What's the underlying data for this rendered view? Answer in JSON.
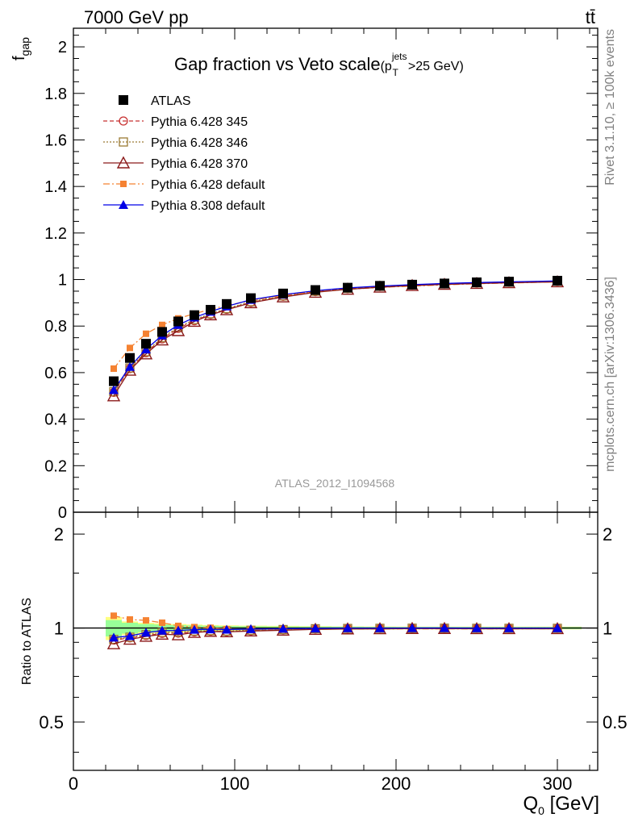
{
  "header": {
    "energy_label": "7000 GeV pp",
    "process_label": "tt̄",
    "rivet_label": "Rivet 3.1.10, ≥ 100k events",
    "mcplots_label": "mcplots.cern.ch [arXiv:1306.3436]",
    "analysis_label": "ATLAS_2012_I1094568"
  },
  "chart_data": [
    {
      "type": "line",
      "title_main": "Gap fraction vs Veto scale",
      "title_sub": "(p",
      "title_sub_sup": "jets",
      "title_sub_sub": "T",
      "title_sub_tail": ">25 GeV)",
      "ylabel": "f",
      "ylabel_sub": "gap",
      "xlim": [
        0,
        325
      ],
      "ylim": [
        0,
        2.08
      ],
      "yticks": [
        0,
        0.2,
        0.4,
        0.6,
        0.8,
        1,
        1.2,
        1.4,
        1.6,
        1.8,
        2
      ],
      "ytick_labels": [
        "0",
        "0.2",
        "0.4",
        "0.6",
        "0.8",
        "1",
        "1.2",
        "1.4",
        "1.6",
        "1.8",
        "2"
      ],
      "x": [
        25,
        35,
        45,
        55,
        65,
        75,
        85,
        95,
        110,
        130,
        150,
        170,
        190,
        210,
        230,
        250,
        270,
        300
      ],
      "series": [
        {
          "name": "ATLAS",
          "color": "#000000",
          "marker": "square-filled",
          "dash": "none",
          "values": [
            0.563,
            0.663,
            0.724,
            0.775,
            0.82,
            0.847,
            0.87,
            0.895,
            0.92,
            0.94,
            0.955,
            0.965,
            0.973,
            0.978,
            0.983,
            0.988,
            0.991,
            0.995
          ]
        },
        {
          "name": "Pythia 6.428 345",
          "color": "#c83232",
          "marker": "circle-open",
          "dash": "5,3",
          "values": [
            0.515,
            0.617,
            0.685,
            0.745,
            0.79,
            0.823,
            0.85,
            0.872,
            0.902,
            0.928,
            0.948,
            0.961,
            0.97,
            0.976,
            0.981,
            0.985,
            0.988,
            0.992
          ]
        },
        {
          "name": "Pythia 6.428 346",
          "color": "#9c7b34",
          "marker": "square-open",
          "dash": "2,2",
          "values": [
            0.518,
            0.62,
            0.69,
            0.75,
            0.795,
            0.828,
            0.853,
            0.875,
            0.905,
            0.93,
            0.95,
            0.962,
            0.971,
            0.977,
            0.982,
            0.986,
            0.989,
            0.993
          ]
        },
        {
          "name": "Pythia 6.428 370",
          "color": "#8b1a1a",
          "marker": "triangle-open",
          "dash": "none",
          "values": [
            0.5,
            0.61,
            0.68,
            0.74,
            0.78,
            0.82,
            0.848,
            0.87,
            0.9,
            0.925,
            0.945,
            0.958,
            0.967,
            0.974,
            0.979,
            0.983,
            0.986,
            0.99
          ]
        },
        {
          "name": "Pythia 6.428 default",
          "color": "#f58232",
          "marker": "square-filled-small",
          "dash": "8,3,2,3",
          "values": [
            0.617,
            0.706,
            0.767,
            0.805,
            0.833,
            0.853,
            0.872,
            0.888,
            0.91,
            0.932,
            0.948,
            0.958,
            0.966,
            0.972,
            0.977,
            0.982,
            0.985,
            0.99
          ]
        },
        {
          "name": "Pythia 8.308 default",
          "color": "#0000e6",
          "marker": "triangle-filled",
          "dash": "none",
          "values": [
            0.525,
            0.625,
            0.7,
            0.76,
            0.805,
            0.837,
            0.862,
            0.885,
            0.913,
            0.935,
            0.952,
            0.964,
            0.972,
            0.978,
            0.983,
            0.987,
            0.99,
            0.994
          ]
        }
      ]
    },
    {
      "type": "line",
      "ylabel": "Ratio to ATLAS",
      "xlabel": "Q",
      "xlabel_sub": "0",
      "xlabel_tail": " [GeV]",
      "xlim": [
        0,
        325
      ],
      "ylim": [
        0.35,
        2.35
      ],
      "log_scale_y": true,
      "yticks": [
        0.5,
        1,
        2
      ],
      "ytick_labels": [
        "0.5",
        "1",
        "2"
      ],
      "xticks": [
        0,
        100,
        200,
        300
      ],
      "xtick_labels": [
        "0",
        "100",
        "200",
        "300"
      ],
      "band_yellow_halfwidth": [
        0.085,
        0.05,
        0.04,
        0.035,
        0.03,
        0.026,
        0.022,
        0.02,
        0.018,
        0.016,
        0.014,
        0.012,
        0.011,
        0.01,
        0.01,
        0.01,
        0.01,
        0.01
      ],
      "band_green_halfwidth": [
        0.06,
        0.04,
        0.03,
        0.026,
        0.022,
        0.019,
        0.017,
        0.015,
        0.013,
        0.012,
        0.011,
        0.01,
        0.009,
        0.008,
        0.008,
        0.008,
        0.008,
        0.008
      ],
      "x": [
        25,
        35,
        45,
        55,
        65,
        75,
        85,
        95,
        110,
        130,
        150,
        170,
        190,
        210,
        230,
        250,
        270,
        300
      ],
      "series": [
        {
          "name": "Pythia 6.428 345",
          "color": "#c83232",
          "marker": "circle-open",
          "dash": "5,3",
          "values": [
            0.915,
            0.93,
            0.946,
            0.961,
            0.963,
            0.972,
            0.977,
            0.974,
            0.98,
            0.987,
            0.993,
            0.996,
            0.997,
            0.998,
            0.998,
            0.997,
            0.997,
            0.997
          ]
        },
        {
          "name": "Pythia 6.428 346",
          "color": "#9c7b34",
          "marker": "square-open",
          "dash": "2,2",
          "values": [
            0.92,
            0.935,
            0.953,
            0.968,
            0.97,
            0.978,
            0.981,
            0.978,
            0.984,
            0.989,
            0.995,
            0.997,
            0.998,
            0.999,
            0.999,
            0.998,
            0.998,
            0.998
          ]
        },
        {
          "name": "Pythia 6.428 370",
          "color": "#8b1a1a",
          "marker": "triangle-open",
          "dash": "none",
          "values": [
            0.89,
            0.92,
            0.94,
            0.955,
            0.951,
            0.968,
            0.975,
            0.972,
            0.978,
            0.984,
            0.99,
            0.993,
            0.994,
            0.996,
            0.996,
            0.995,
            0.995,
            0.995
          ]
        },
        {
          "name": "Pythia 6.428 default",
          "color": "#f58232",
          "marker": "square-filled-small",
          "dash": "8,3,2,3",
          "values": [
            1.095,
            1.065,
            1.058,
            1.04,
            1.016,
            1.007,
            1.002,
            0.992,
            0.989,
            0.991,
            0.993,
            0.993,
            0.993,
            0.994,
            0.994,
            0.994,
            0.994,
            0.995
          ]
        },
        {
          "name": "Pythia 8.308 default",
          "color": "#0000e6",
          "marker": "triangle-filled",
          "dash": "none",
          "values": [
            0.932,
            0.943,
            0.967,
            0.981,
            0.982,
            0.988,
            0.991,
            0.989,
            0.992,
            0.995,
            0.997,
            0.999,
            0.999,
            1.0,
            1.0,
            0.999,
            0.999,
            0.999
          ]
        }
      ]
    }
  ]
}
